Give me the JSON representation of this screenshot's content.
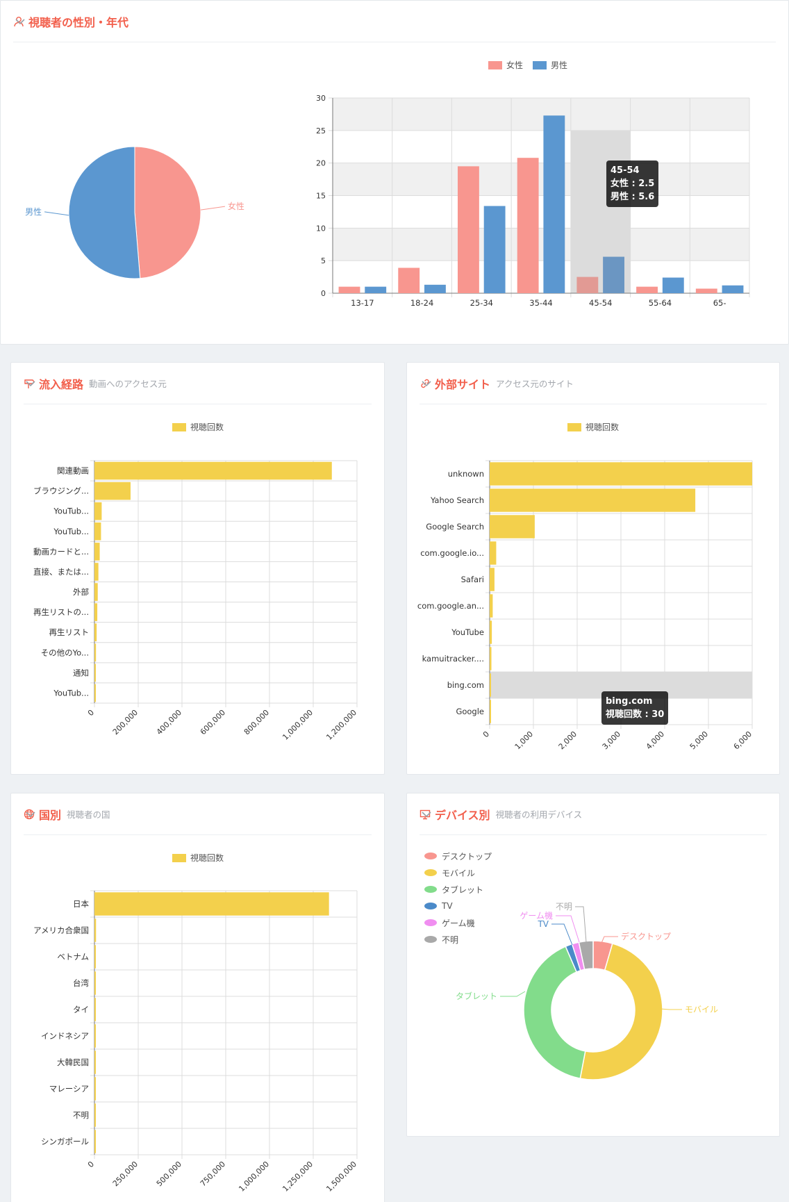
{
  "colors": {
    "female": "#f8968f",
    "male": "#5b97d0",
    "yellow": "#f3d04c",
    "green": "#82dc8b",
    "tv": "#4b8ac9",
    "game": "#f08ef0",
    "unknown": "#a9a9a9",
    "title": "#f25f4c",
    "grid": "#dcdcdc"
  },
  "gender": {
    "title": "視聴者の性別・年代",
    "icon": "person-icon",
    "legend": [
      "女性",
      "男性"
    ],
    "tooltip": {
      "title": "45-54",
      "female": "女性 : 2.5",
      "male": "男性 : 5.6"
    }
  },
  "sources": {
    "title": "流入経路",
    "subtitle": "動画へのアクセス元",
    "icon": "signpost-icon",
    "legend": "視聴回数"
  },
  "sites": {
    "title": "外部サイト",
    "subtitle": "アクセス元のサイト",
    "icon": "link-icon",
    "legend": "視聴回数",
    "tooltip": {
      "title": "bing.com",
      "value": "視聴回数 : 30"
    }
  },
  "countries": {
    "title": "国別",
    "subtitle": "視聴者の国",
    "icon": "globe-icon",
    "legend": "視聴回数"
  },
  "devices": {
    "title": "デバイス別",
    "subtitle": "視聴者の利用デバイス",
    "icon": "monitor-icon",
    "legend": [
      "デスクトップ",
      "モバイル",
      "タブレット",
      "TV",
      "ゲーム機",
      "不明"
    ]
  },
  "chart_data": [
    {
      "id": "gender_pie",
      "type": "pie",
      "slices": [
        {
          "label": "女性",
          "value": 48.7
        },
        {
          "label": "男性",
          "value": 51.3
        }
      ]
    },
    {
      "id": "age_bar",
      "type": "bar",
      "categories": [
        "13-17",
        "18-24",
        "25-34",
        "35-44",
        "45-54",
        "55-64",
        "65-"
      ],
      "series": [
        {
          "name": "女性",
          "values": [
            1.0,
            3.9,
            19.5,
            20.8,
            2.5,
            1.0,
            0.7
          ]
        },
        {
          "name": "男性",
          "values": [
            1.0,
            1.3,
            13.4,
            27.3,
            5.6,
            2.4,
            1.2
          ]
        }
      ],
      "ylim": [
        0,
        30
      ],
      "yticks": [
        0,
        5,
        10,
        15,
        20,
        25,
        30
      ],
      "grid": true,
      "legend": "top"
    },
    {
      "id": "sources_bar",
      "type": "bar",
      "orientation": "horizontal",
      "categories": [
        "関連動画",
        "ブラウジング...",
        "YouTub...",
        "YouTub...",
        "動画カードと...",
        "直接、または...",
        "外部",
        "再生リストの...",
        "再生リスト",
        "その他のYo...",
        "通知",
        "YouTub..."
      ],
      "series": [
        {
          "name": "視聴回数",
          "values": [
            1085000,
            165000,
            33000,
            30000,
            24000,
            18000,
            15000,
            13000,
            10000,
            7000,
            4000,
            2000
          ]
        }
      ],
      "xlim": [
        0,
        1200000
      ],
      "xticks": [
        "0",
        "200,000",
        "400,000",
        "600,000",
        "800,000",
        "1,000,000",
        "1,200,000"
      ]
    },
    {
      "id": "sites_bar",
      "type": "bar",
      "orientation": "horizontal",
      "categories": [
        "unknown",
        "Yahoo Search",
        "Google Search",
        "com.google.io...",
        "Safari",
        "com.google.an...",
        "YouTube",
        "kamuitracker....",
        "bing.com",
        "Google"
      ],
      "series": [
        {
          "name": "視聴回数",
          "values": [
            6000,
            4700,
            1030,
            150,
            110,
            70,
            50,
            40,
            30,
            30
          ]
        }
      ],
      "xlim": [
        0,
        6000
      ],
      "xticks": [
        "0",
        "1,000",
        "2,000",
        "3,000",
        "4,000",
        "5,000",
        "6,000"
      ]
    },
    {
      "id": "countries_bar",
      "type": "bar",
      "orientation": "horizontal",
      "categories": [
        "日本",
        "アメリカ合衆国",
        "ベトナム",
        "台湾",
        "タイ",
        "インドネシア",
        "大韓民国",
        "マレーシア",
        "不明",
        "シンガポール"
      ],
      "series": [
        {
          "name": "視聴回数",
          "values": [
            1340000,
            9000,
            3000,
            2500,
            2000,
            1500,
            1300,
            1100,
            900,
            700
          ]
        }
      ],
      "xlim": [
        0,
        1500000
      ],
      "xticks": [
        "0",
        "250,000",
        "500,000",
        "750,000",
        "1,000,000",
        "1,250,000",
        "1,500,000"
      ]
    },
    {
      "id": "devices_donut",
      "type": "pie",
      "slices": [
        {
          "label": "デスクトップ",
          "value": 4.5
        },
        {
          "label": "モバイル",
          "value": 48.5
        },
        {
          "label": "タブレット",
          "value": 40.5
        },
        {
          "label": "TV",
          "value": 1.6
        },
        {
          "label": "ゲーム機",
          "value": 1.6
        },
        {
          "label": "不明",
          "value": 3.3
        }
      ]
    }
  ]
}
